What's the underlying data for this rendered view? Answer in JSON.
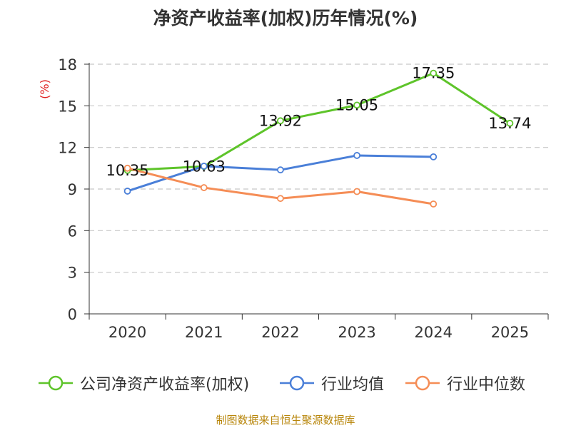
{
  "chart_data": {
    "type": "line",
    "title": "净资产收益率(加权)历年情况(%)",
    "ylabel": "(%)",
    "xlabel": "",
    "categories": [
      "2020",
      "2021",
      "2022",
      "2023",
      "2024",
      "2025"
    ],
    "ylim": [
      0,
      18
    ],
    "yticks": [
      0,
      3,
      6,
      9,
      12,
      15,
      18
    ],
    "grid": "horizontal-dashed",
    "legend_position": "bottom",
    "series": [
      {
        "name": "公司净资产收益率(加权)",
        "color": "#5ec42a",
        "values": [
          10.35,
          10.63,
          13.92,
          15.05,
          17.35,
          13.74
        ],
        "labels": [
          "10.35",
          "10.63",
          "13.92",
          "15.05",
          "17.35",
          "13.74"
        ]
      },
      {
        "name": "行业均值",
        "color": "#4a7fd8",
        "values": [
          8.85,
          10.65,
          10.38,
          11.42,
          11.32,
          null
        ]
      },
      {
        "name": "行业中位数",
        "color": "#f58d56",
        "values": [
          10.5,
          9.1,
          8.32,
          8.82,
          7.92,
          null
        ]
      }
    ]
  },
  "footer": {
    "source": "制图数据来自恒生聚源数据库"
  }
}
